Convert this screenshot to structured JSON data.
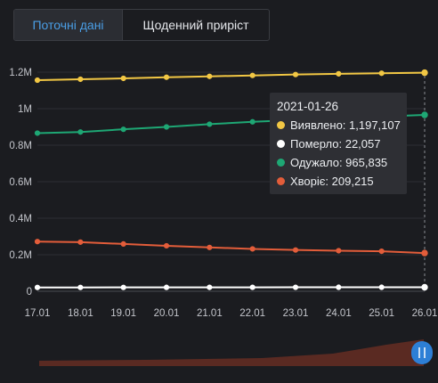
{
  "tabs": [
    {
      "label": "Поточні дані",
      "active": true
    },
    {
      "label": "Щоденний приріст",
      "active": false
    }
  ],
  "chart_data": {
    "type": "line",
    "x": [
      "17.01",
      "18.01",
      "19.01",
      "20.01",
      "21.01",
      "22.01",
      "23.01",
      "24.01",
      "25.01",
      "26.01"
    ],
    "ylim": [
      0,
      1200000
    ],
    "yticks": [
      0,
      200000,
      400000,
      600000,
      800000,
      1000000,
      1200000
    ],
    "ytick_labels": [
      "0",
      "0.2M",
      "0.4M",
      "0.6M",
      "0.8M",
      "1M",
      "1.2M"
    ],
    "grid": true,
    "series": [
      {
        "name": "Виявлено",
        "color": "#f2c744",
        "values": [
          1156000,
          1161000,
          1166000,
          1172000,
          1177000,
          1182000,
          1187000,
          1191000,
          1194000,
          1197107
        ]
      },
      {
        "name": "Померло",
        "color": "#ffffff",
        "values": [
          20800,
          21000,
          21100,
          21300,
          21400,
          21600,
          21700,
          21800,
          21900,
          22057
        ]
      },
      {
        "name": "Одужало",
        "color": "#1ea774",
        "values": [
          866000,
          872000,
          887000,
          900000,
          915000,
          928000,
          938000,
          948000,
          957000,
          965835
        ]
      },
      {
        "name": "Хворіє",
        "color": "#e35d3a",
        "values": [
          272000,
          269000,
          259000,
          249000,
          240000,
          232000,
          226000,
          222000,
          219000,
          209215
        ]
      }
    ]
  },
  "tooltip": {
    "date": "2021-01-26",
    "rows": [
      {
        "text": "Виявлено: 1,197,107",
        "color": "#f2c744"
      },
      {
        "text": "Померло: 22,057",
        "color": "#ffffff"
      },
      {
        "text": "Одужало: 965,835",
        "color": "#1ea774"
      },
      {
        "text": "Хворіє: 209,215",
        "color": "#e35d3a"
      }
    ]
  },
  "zoom": {
    "fill_color": "#5a2a22",
    "handle_color": "#2d7fd6"
  }
}
